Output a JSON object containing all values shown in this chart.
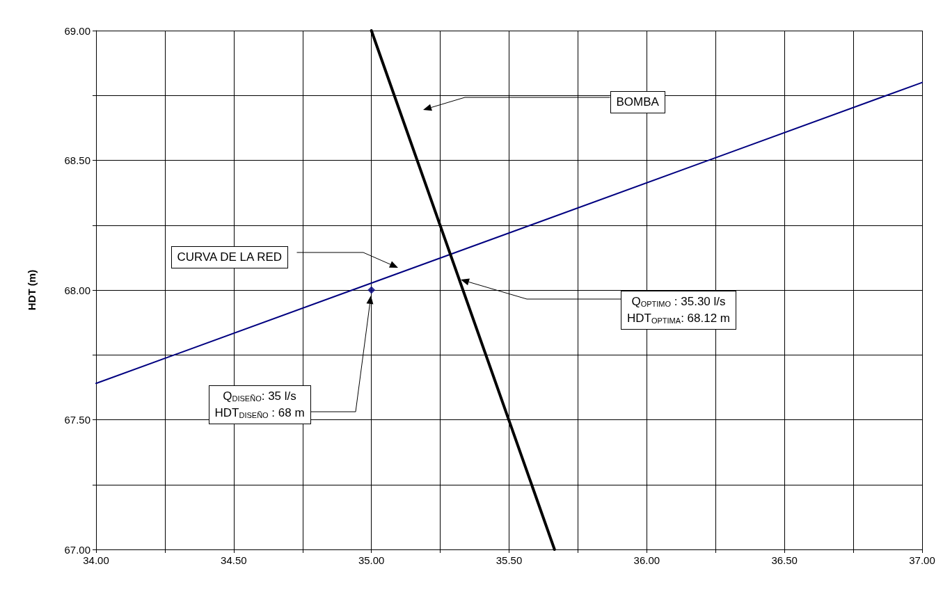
{
  "chart_data": {
    "type": "line",
    "ylabel": "HDT (m)",
    "xlim": [
      34,
      37
    ],
    "ylim": [
      67,
      69
    ],
    "xticks": [
      {
        "value": 34,
        "label": "34.00"
      },
      {
        "value": 34.25,
        "label": null
      },
      {
        "value": 34.5,
        "label": "34.50"
      },
      {
        "value": 34.75,
        "label": null
      },
      {
        "value": 35,
        "label": "35.00"
      },
      {
        "value": 35.25,
        "label": null
      },
      {
        "value": 35.5,
        "label": "35.50"
      },
      {
        "value": 35.75,
        "label": null
      },
      {
        "value": 36,
        "label": "36.00"
      },
      {
        "value": 36.25,
        "label": null
      },
      {
        "value": 36.5,
        "label": "36.50"
      },
      {
        "value": 36.75,
        "label": null
      },
      {
        "value": 37,
        "label": "37.00"
      }
    ],
    "yticks": [
      {
        "value": 67,
        "label": "67.00"
      },
      {
        "value": 67.25,
        "label": null
      },
      {
        "value": 67.5,
        "label": "67.50"
      },
      {
        "value": 67.75,
        "label": null
      },
      {
        "value": 68,
        "label": "68.00"
      },
      {
        "value": 68.25,
        "label": null
      },
      {
        "value": 68.5,
        "label": "68.50"
      },
      {
        "value": 68.75,
        "label": null
      },
      {
        "value": 69,
        "label": "69.00"
      }
    ],
    "grid": true,
    "marker": "none",
    "series": [
      {
        "type": "line",
        "color": "#000000",
        "x": [
          35.0,
          35.665
        ],
        "values": [
          69.0,
          67.0
        ]
      },
      {
        "type": "line",
        "color": "#000080",
        "x": [
          34,
          37
        ],
        "values": [
          67.64,
          68.8
        ]
      },
      {
        "type": "scatter",
        "color": "#000080",
        "marker": "diamond",
        "x": [
          35
        ],
        "values": [
          68
        ]
      }
    ],
    "annotations": [
      "BOMBA",
      "CURVA DE LA RED",
      "Q$_{OPTIMO}$ : 35.30 l/s\nHDT$_{OPTIMA}$: 68.12 m",
      "Q$_{DISEÑO}$: 35 l/s\nHDT$_{DISEÑO}$ : 68 m"
    ]
  }
}
